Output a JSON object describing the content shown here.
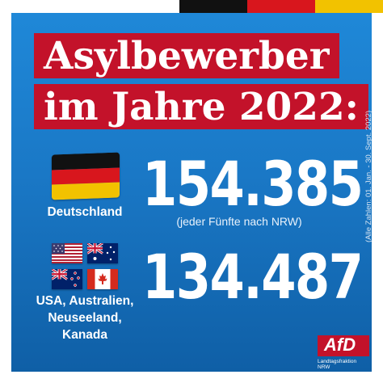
{
  "colors": {
    "panel": "#1a78c6",
    "title_bg": "#c3122a",
    "black": "#111111",
    "red": "#d8161d",
    "gold": "#f2c200"
  },
  "title": {
    "line1": "Asylbewerber",
    "line2": "im Jahre 2022:"
  },
  "germany": {
    "number": "154.385",
    "note": "(jeder Fünfte nach NRW)",
    "label": "Deutschland",
    "flag_icon": "germany-flag-icon"
  },
  "others": {
    "number": "134.487",
    "label_line1": "USA, Australien,",
    "label_line2": "Neuseeland, Kanada",
    "flags": [
      "usa-flag-icon",
      "australia-flag-icon",
      "new-zealand-flag-icon",
      "canada-flag-icon"
    ]
  },
  "source": "(Alle Zahlen: 01. Jan. - 30. Sept. 2022)",
  "logo": {
    "text": "AfD",
    "sub1": "Landtagsfraktion",
    "sub2": "NRW"
  }
}
